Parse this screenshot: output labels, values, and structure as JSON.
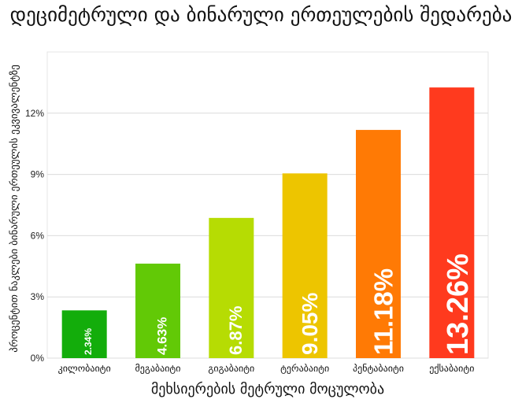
{
  "chart_data": {
    "type": "bar",
    "title": "დეციმეტრული და ბინარული ერთეულების შედარება",
    "xlabel": "მეხსიერების მეტრული მოცულობა",
    "ylabel": "პროცენტით ნაკლები ბინარული ერთეულის ეკვივალენტზე",
    "categories": [
      "კილობაიტი",
      "მეგაბაიტი",
      "გიგაბაიტი",
      "ტერაბაიტი",
      "პენტაბაიტი",
      "ექსაბაიტი"
    ],
    "values": [
      2.34,
      4.63,
      6.87,
      9.05,
      11.18,
      13.26
    ],
    "data_labels": [
      "2.34%",
      "4.63%",
      "6.87%",
      "9.05%",
      "11.18%",
      "13.26%"
    ],
    "colors": [
      "#13ad0b",
      "#62c906",
      "#b6dc03",
      "#edc500",
      "#ff7a05",
      "#ff3a1e"
    ],
    "yticks": [
      0,
      3,
      6,
      9,
      12
    ],
    "ytick_labels": [
      "0%",
      "3%",
      "6%",
      "9%",
      "12%"
    ],
    "ylim": [
      0,
      15
    ],
    "grid": true,
    "legend": "none"
  }
}
